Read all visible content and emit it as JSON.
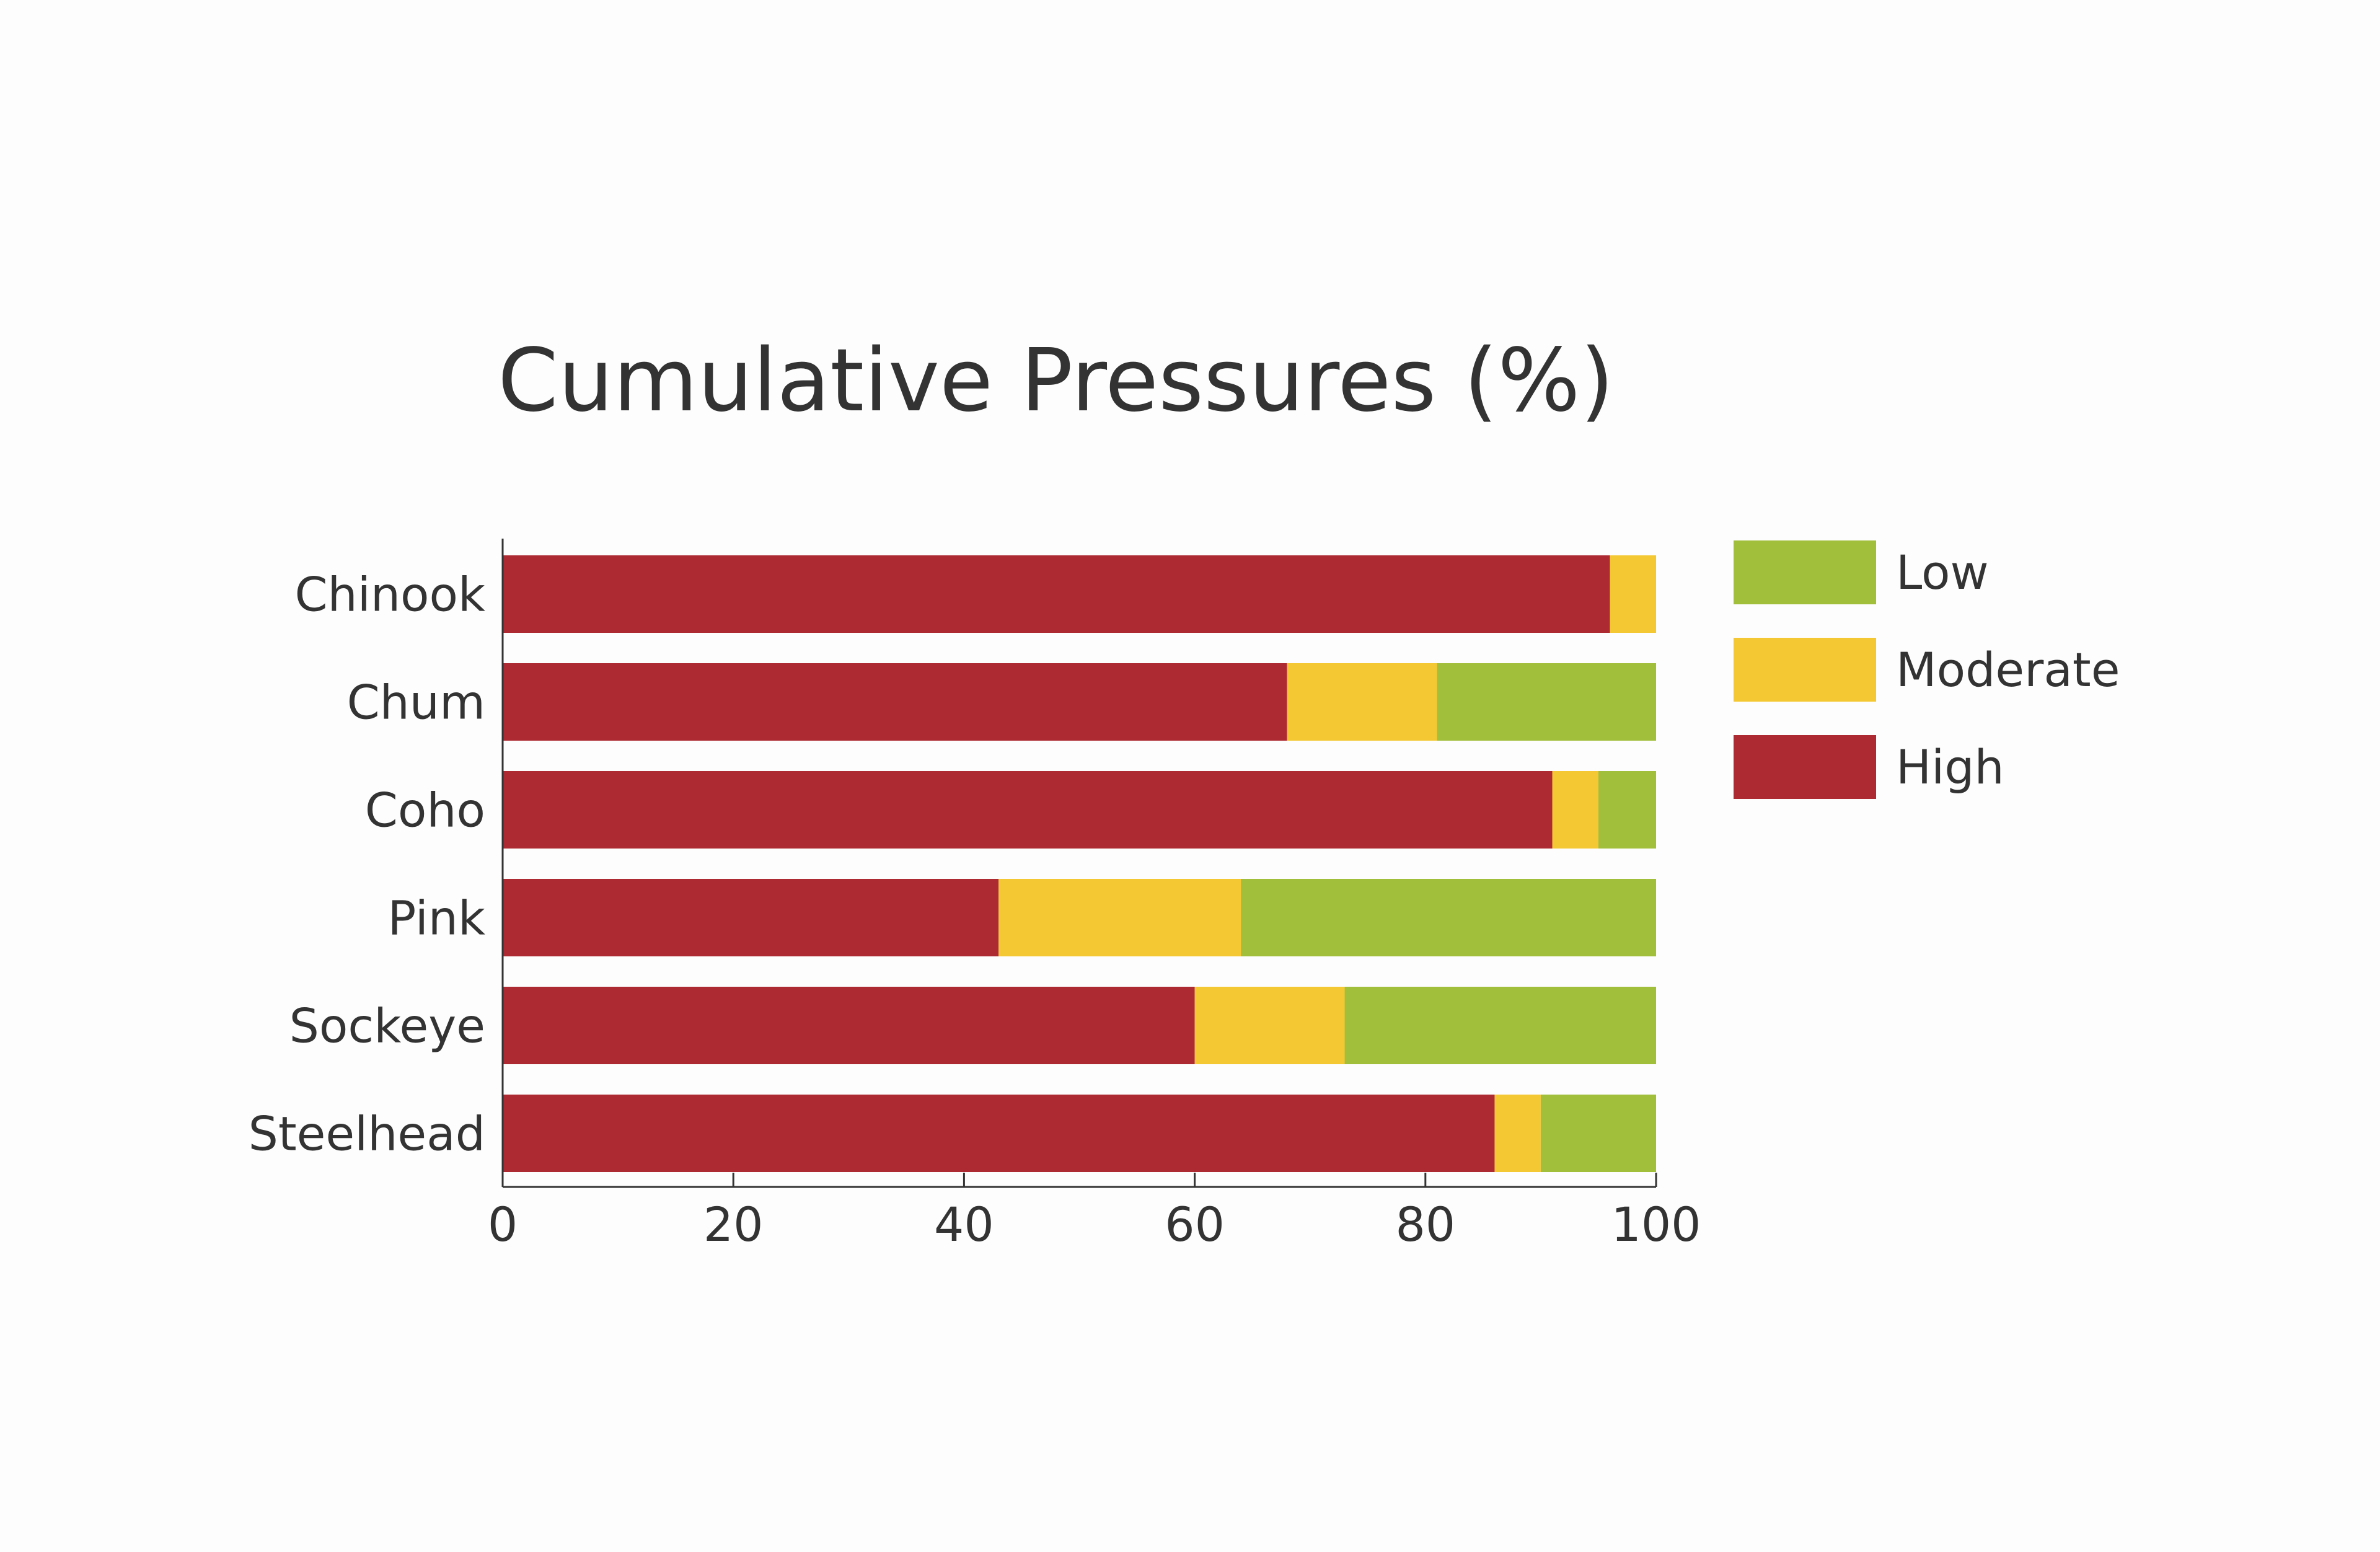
{
  "chart_data": {
    "type": "bar",
    "orientation": "horizontal",
    "stacked": true,
    "title": "Cumulative Pressures (%)",
    "xlabel": "",
    "ylabel": "",
    "xlim": [
      0,
      100
    ],
    "x_ticks": [
      "0",
      "20",
      "40",
      "60",
      "80",
      "100"
    ],
    "categories": [
      "Chinook",
      "Chum",
      "Coho",
      "Pink",
      "Sockeye",
      "Steelhead"
    ],
    "series": [
      {
        "name": "High",
        "color": "#ad2a32",
        "values": [
          96,
          68,
          91,
          43,
          60,
          86
        ]
      },
      {
        "name": "Moderate",
        "color": "#f4c832",
        "values": [
          4,
          13,
          4,
          21,
          13,
          4
        ]
      },
      {
        "name": "Low",
        "color": "#a2bf3c",
        "values": [
          0,
          19,
          5,
          36,
          27,
          10
        ]
      }
    ],
    "legend": {
      "placement": "right",
      "order": [
        "Low",
        "Moderate",
        "High"
      ]
    },
    "grid": false
  }
}
